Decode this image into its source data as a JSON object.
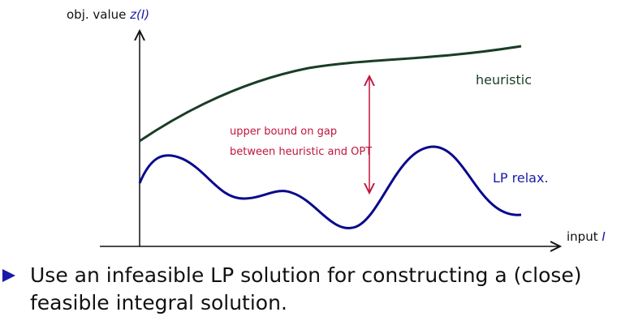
{
  "axes": {
    "y_label": "obj. value",
    "y_label_math": "z(I)",
    "x_label": "input",
    "x_label_math": "I"
  },
  "curves": {
    "heuristic": "heuristic",
    "lp": "LP relax."
  },
  "annotation": {
    "line1": "upper bound on gap",
    "line2": "between heuristic and OPT"
  },
  "colors": {
    "heuristic": "#1a3d26",
    "lp": "#0a0a8c",
    "annotation": "#c0143c",
    "accent": "#1a1aa8"
  },
  "bullet": {
    "text": "Use an infeasible LP solution for constructing a (close) feasible integral solution."
  }
}
